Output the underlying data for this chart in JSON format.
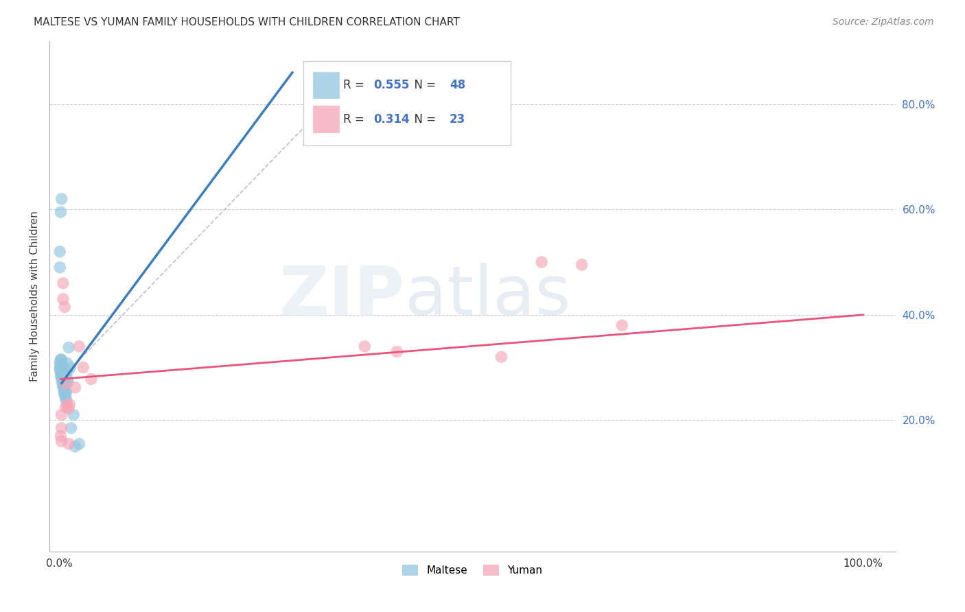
{
  "title": "MALTESE VS YUMAN FAMILY HOUSEHOLDS WITH CHILDREN CORRELATION CHART",
  "source": "Source: ZipAtlas.com",
  "ylabel": "Family Households with Children",
  "xtick_labels": [
    "0.0%",
    "",
    "",
    "",
    "",
    "100.0%"
  ],
  "xtick_positions": [
    0.0,
    0.2,
    0.4,
    0.6,
    0.8,
    1.0
  ],
  "ytick_labels_right": [
    "20.0%",
    "40.0%",
    "60.0%",
    "80.0%"
  ],
  "ytick_positions_right": [
    0.2,
    0.4,
    0.6,
    0.8
  ],
  "legend_label1": "Maltese",
  "legend_label2": "Yuman",
  "r1": 0.555,
  "n1": 48,
  "r2": 0.314,
  "n2": 23,
  "blue_scatter_color": "#92c5de",
  "pink_scatter_color": "#f4a6b8",
  "blue_line_color": "#3a7ebf",
  "pink_line_color": "#e8547a",
  "dashed_line_color": "#b0b0b0",
  "blue_line_x": [
    0.003,
    0.29
  ],
  "blue_line_y": [
    0.27,
    0.86
  ],
  "pink_line_x": [
    0.002,
    1.0
  ],
  "pink_line_y": [
    0.278,
    0.4
  ],
  "dashed_line_x": [
    0.0,
    0.38
  ],
  "dashed_line_y": [
    0.275,
    0.875
  ],
  "maltese_x": [
    0.001,
    0.001,
    0.001,
    0.002,
    0.002,
    0.002,
    0.002,
    0.003,
    0.003,
    0.003,
    0.003,
    0.003,
    0.004,
    0.004,
    0.004,
    0.004,
    0.004,
    0.005,
    0.005,
    0.005,
    0.005,
    0.005,
    0.006,
    0.006,
    0.006,
    0.006,
    0.006,
    0.007,
    0.007,
    0.007,
    0.008,
    0.008,
    0.009,
    0.009,
    0.01,
    0.01,
    0.01,
    0.011,
    0.012,
    0.014,
    0.015,
    0.018,
    0.02,
    0.025,
    0.001,
    0.003,
    0.002,
    0.001
  ],
  "maltese_y": [
    0.295,
    0.3,
    0.31,
    0.285,
    0.295,
    0.305,
    0.315,
    0.28,
    0.29,
    0.295,
    0.305,
    0.315,
    0.27,
    0.278,
    0.29,
    0.295,
    0.302,
    0.262,
    0.27,
    0.278,
    0.29,
    0.3,
    0.252,
    0.262,
    0.272,
    0.282,
    0.295,
    0.248,
    0.26,
    0.27,
    0.242,
    0.255,
    0.238,
    0.252,
    0.278,
    0.29,
    0.308,
    0.272,
    0.338,
    0.3,
    0.185,
    0.21,
    0.15,
    0.155,
    0.49,
    0.62,
    0.595,
    0.52
  ],
  "yuman_x": [
    0.002,
    0.003,
    0.003,
    0.005,
    0.005,
    0.007,
    0.008,
    0.01,
    0.012,
    0.013,
    0.02,
    0.025,
    0.03,
    0.04,
    0.38,
    0.42,
    0.55,
    0.6,
    0.65,
    0.7,
    0.003,
    0.008,
    0.012
  ],
  "yuman_y": [
    0.17,
    0.16,
    0.21,
    0.46,
    0.43,
    0.415,
    0.27,
    0.228,
    0.222,
    0.23,
    0.262,
    0.34,
    0.3,
    0.278,
    0.34,
    0.33,
    0.32,
    0.5,
    0.495,
    0.38,
    0.185,
    0.225,
    0.155
  ]
}
